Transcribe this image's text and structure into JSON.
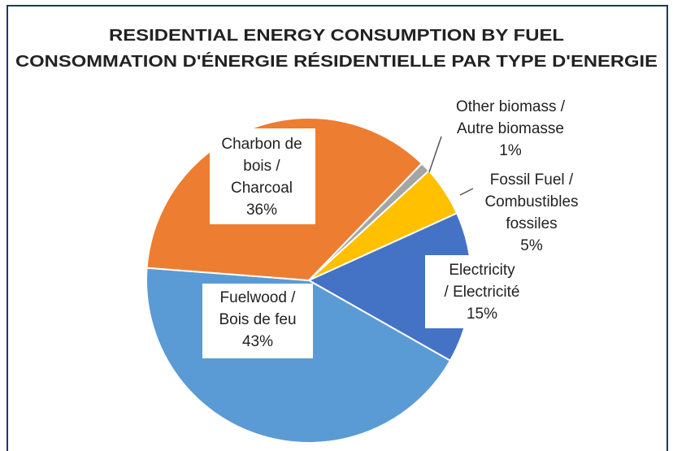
{
  "chart_data": {
    "type": "pie",
    "title": [
      "RESIDENTIAL ENERGY CONSUMPTION BY FUEL",
      "CONSOMMATION D'ÉNERGIE RÉSIDENTIELLE PAR TYPE D'ENERGIE"
    ],
    "categories": [
      [
        "Other biomass /",
        "Autre biomasse"
      ],
      [
        "Fossil Fuel /",
        "Combustibles",
        "fossiles"
      ],
      [
        "Electricity",
        "/ Electricité"
      ],
      [
        "Fuelwood /",
        "Bois de feu"
      ],
      [
        "Charbon de",
        "bois  /",
        "Charcoal"
      ]
    ],
    "values": [
      1,
      5,
      15,
      43,
      36
    ],
    "value_labels": [
      "1%",
      "5%",
      "15%",
      "43%",
      "36%"
    ],
    "colors": [
      "#a5a5a5",
      "#ffc000",
      "#4472c4",
      "#5b9bd5",
      "#ed7d31"
    ]
  }
}
